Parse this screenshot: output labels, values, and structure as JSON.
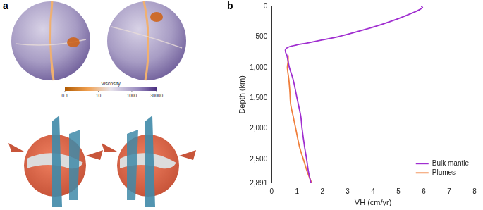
{
  "panels": {
    "a": {
      "label": "a",
      "colorbar": {
        "title": "Viscosity",
        "range": [
          0.1,
          30000
        ],
        "ticks": [
          0.1,
          10,
          1000,
          30000
        ],
        "log": true
      }
    },
    "b": {
      "label": "b"
    }
  },
  "chart_data": {
    "type": "line",
    "x_label": "VH (cm/yr)",
    "y_label": "Depth (km)",
    "xlim": [
      0,
      8
    ],
    "xticks": [
      0,
      1,
      2,
      3,
      4,
      5,
      6,
      7,
      8
    ],
    "ylim": [
      0,
      2891
    ],
    "yticks": [
      0,
      500,
      1000,
      1500,
      2000,
      2500,
      2891
    ],
    "y_reversed": true,
    "grid": false,
    "legend": "lower right",
    "series": [
      {
        "name": "Bulk mantle",
        "color": "#a02ed0",
        "x": [
          5.9,
          5.95,
          5.85,
          5.6,
          5.0,
          4.3,
          3.5,
          2.6,
          2.0,
          1.4,
          1.0,
          0.7,
          0.55,
          0.55,
          0.6,
          0.7,
          0.85,
          1.0,
          1.15,
          1.2,
          1.3,
          1.38,
          1.45,
          1.55
        ],
        "y": [
          0,
          20,
          50,
          100,
          200,
          300,
          400,
          500,
          550,
          600,
          630,
          660,
          700,
          750,
          800,
          1000,
          1200,
          1500,
          1800,
          2000,
          2300,
          2500,
          2700,
          2891
        ]
      },
      {
        "name": "Plumes",
        "color": "#f07f3c",
        "x": [
          0.65,
          0.65,
          0.62,
          0.68,
          0.72,
          0.75,
          0.85,
          0.95,
          1.1,
          1.25,
          1.4,
          1.58
        ],
        "y": [
          800,
          900,
          1000,
          1200,
          1400,
          1600,
          1800,
          2000,
          2300,
          2500,
          2700,
          2891
        ]
      }
    ]
  }
}
